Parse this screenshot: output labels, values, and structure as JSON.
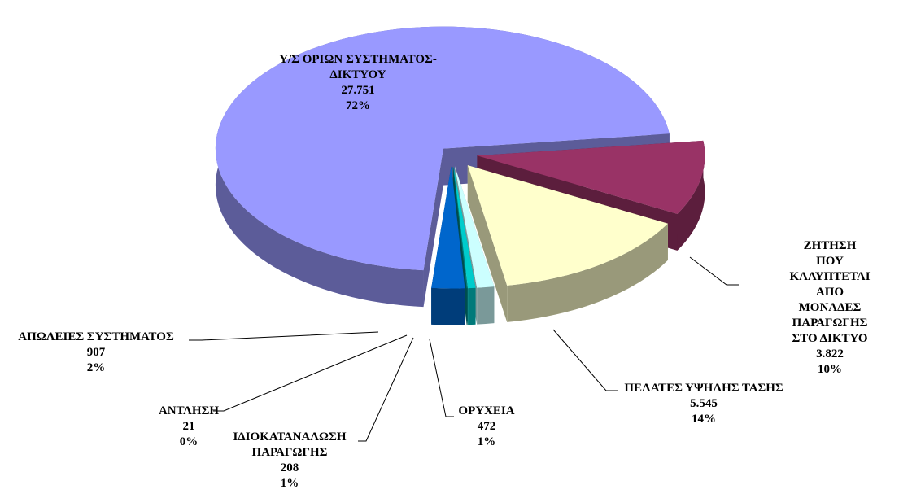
{
  "chart_data": {
    "type": "pie3d",
    "categories": [
      "Υ/Σ ΟΡΙΩΝ ΣΥΣΤΗΜΑΤΟΣ-\nΔΙΚΤΥΟΥ",
      "ΖΗΤΗΣΗ ΠΟΥ\nΚΑΛΥΠΤΕΤΑΙ ΑΠΟ\nΜΟΝΑΔΕΣ ΠΑΡΑΓΩΓΗΣ\nΣΤΟ ΔΙΚΤΥΟ",
      "ΠΕΛΑΤΕΣ ΥΨΗΛΗΣ ΤΑΣΗΣ",
      "ΟΡΥΧΕΙΑ",
      "ΙΔΙΟΚΑΤΑΝΑΛΩΣΗ\nΠΑΡΑΓΩΓΗΣ",
      "ΑΝΤΛΗΣΗ",
      "ΑΠΩΛΕΙΕΣ ΣΥΣΤΗΜΑΤΟΣ"
    ],
    "values": [
      27751,
      3822,
      5545,
      472,
      208,
      21,
      907
    ],
    "value_labels": [
      "27.751",
      "3.822",
      "5.545",
      "472",
      "208",
      "21",
      "907"
    ],
    "percent_labels": [
      "72%",
      "10%",
      "14%",
      "1%",
      "1%",
      "0%",
      "2%"
    ],
    "colors": [
      "#9999ff",
      "#993366",
      "#ffffcc",
      "#ccffff",
      "#00cccc",
      "#008080",
      "#0066cc"
    ]
  }
}
